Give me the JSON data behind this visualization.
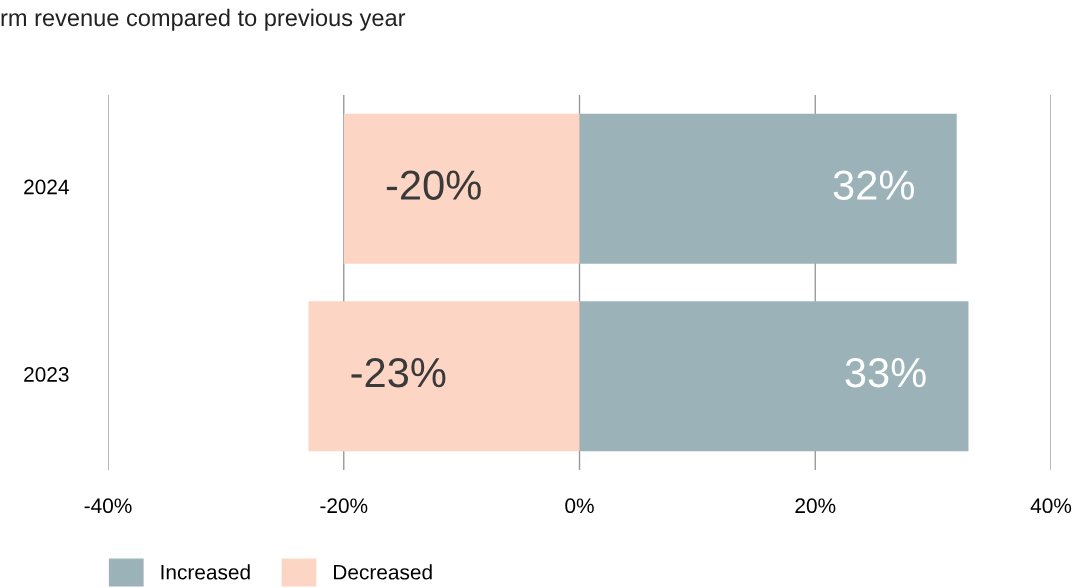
{
  "chart_data": {
    "type": "bar",
    "orientation": "horizontal",
    "stacked": true,
    "title": "rm revenue compared to previous year",
    "categories": [
      "2024",
      "2023"
    ],
    "series": [
      {
        "name": "Increased",
        "color": "#9bb3b8",
        "values": [
          32,
          33
        ],
        "value_labels": [
          "32%",
          "33%"
        ]
      },
      {
        "name": "Decreased",
        "color": "#fcd5c4",
        "values": [
          -20,
          -23
        ],
        "value_labels": [
          "-20%",
          "-23%"
        ]
      }
    ],
    "xlim": [
      -40,
      40
    ],
    "xticks": [
      {
        "value": -40,
        "label": "-40%"
      },
      {
        "value": -20,
        "label": "-20%"
      },
      {
        "value": 0,
        "label": "0%"
      },
      {
        "value": 20,
        "label": "20%"
      },
      {
        "value": 40,
        "label": "40%"
      }
    ],
    "grid": "x",
    "legend": "bottom left"
  }
}
